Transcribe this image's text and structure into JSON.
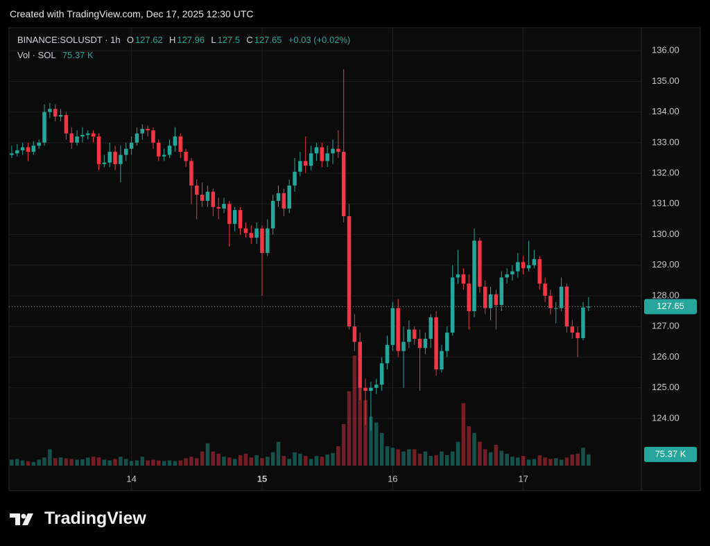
{
  "header": {
    "credit": "Created with TradingView.com, Dec 17, 2025 12:30 UTC"
  },
  "footer": {
    "logo": "TradingView"
  },
  "chart_data": {
    "type": "candlestick",
    "symbol": "BINANCE:SOLUSDT · 1h",
    "open_label": "O",
    "high_label": "H",
    "low_label": "L",
    "close_label": "C",
    "change": "+0.03 (+0.02%)",
    "volume_title": "Vol · SOL",
    "up_color": "#26a69a",
    "down_color": "#f23645",
    "grid": true,
    "xlim": [
      -0.5,
      115.7
    ],
    "xticks": [
      {
        "value": 22,
        "label": "14"
      },
      {
        "value": 46,
        "label": "15"
      },
      {
        "value": 70,
        "label": "16"
      },
      {
        "value": 94,
        "label": "17"
      }
    ],
    "ylim": [
      122.46,
      136.75
    ],
    "yticks": [
      {
        "value": 124,
        "label": "124.00"
      },
      {
        "value": 125,
        "label": "125.00"
      },
      {
        "value": 126,
        "label": "126.00"
      },
      {
        "value": 127,
        "label": "127.00"
      },
      {
        "value": 128,
        "label": "128.00"
      },
      {
        "value": 129,
        "label": "129.00"
      },
      {
        "value": 130,
        "label": "130.00"
      },
      {
        "value": 131,
        "label": "131.00"
      },
      {
        "value": 132,
        "label": "132.00"
      },
      {
        "value": 133,
        "label": "133.00"
      },
      {
        "value": 134,
        "label": "134.00"
      },
      {
        "value": 135,
        "label": "135.00"
      },
      {
        "value": 136,
        "label": "136.00"
      }
    ],
    "open": [
      132.6,
      132.65,
      132.75,
      132.85,
      132.7,
      132.9,
      133.0,
      134.0,
      134.1,
      133.85,
      133.9,
      133.3,
      133.0,
      133.2,
      133.25,
      133.3,
      133.2,
      132.3,
      132.35,
      132.7,
      132.3,
      132.6,
      132.8,
      133.0,
      133.3,
      133.45,
      133.4,
      133.0,
      132.55,
      132.6,
      132.9,
      133.2,
      132.7,
      132.4,
      131.6,
      131.3,
      131.1,
      131.4,
      130.9,
      130.85,
      131.0,
      130.35,
      130.8,
      130.2,
      130.05,
      129.9,
      130.2,
      129.4,
      130.2,
      131.1,
      131.35,
      130.85,
      131.6,
      132.05,
      132.4,
      132.25,
      132.65,
      132.85,
      132.4,
      132.65,
      132.8,
      132.7,
      130.6,
      127.0,
      126.5,
      125.0,
      124.9,
      125.0,
      125.1,
      125.8,
      126.4,
      127.6,
      126.2,
      126.5,
      126.9,
      126.6,
      126.3,
      126.6,
      127.3,
      125.6,
      126.2,
      126.8,
      128.6,
      128.7,
      128.4,
      127.5,
      129.8,
      128.3,
      127.6,
      128.05,
      127.7,
      128.6,
      128.7,
      128.8,
      129.1,
      128.9,
      129.0,
      129.2,
      128.4,
      128.0,
      127.6,
      127.6,
      128.3,
      127.0,
      126.8,
      126.62,
      127.62
    ],
    "high": [
      132.9,
      132.95,
      133.0,
      133.0,
      133.05,
      133.1,
      134.25,
      134.3,
      134.25,
      134.1,
      134.0,
      133.5,
      133.4,
      133.5,
      133.4,
      133.4,
      133.3,
      132.6,
      133.0,
      132.9,
      132.9,
      133.0,
      133.2,
      133.5,
      133.6,
      133.55,
      133.5,
      133.1,
      132.8,
      133.1,
      133.5,
      133.3,
      132.8,
      132.5,
      131.8,
      131.7,
      131.6,
      131.5,
      131.2,
      131.2,
      131.1,
      130.9,
      130.9,
      130.4,
      130.3,
      130.4,
      130.3,
      130.5,
      131.3,
      131.6,
      131.5,
      131.8,
      132.5,
      132.7,
      133.2,
      132.9,
      133.0,
      133.0,
      132.9,
      133.1,
      133.4,
      135.4,
      131.0,
      127.4,
      126.8,
      125.3,
      125.2,
      125.3,
      126.0,
      126.7,
      127.8,
      127.9,
      127.0,
      127.2,
      127.0,
      126.9,
      126.8,
      127.4,
      127.5,
      126.4,
      127.0,
      129.0,
      129.5,
      128.9,
      128.7,
      130.2,
      129.9,
      128.5,
      128.3,
      128.2,
      128.8,
      128.9,
      129.0,
      129.4,
      129.3,
      129.8,
      129.5,
      129.3,
      128.6,
      128.2,
      127.8,
      128.6,
      128.4,
      127.2,
      127.0,
      127.8,
      127.96
    ],
    "low": [
      132.5,
      132.55,
      132.6,
      132.4,
      132.6,
      132.8,
      132.9,
      133.8,
      133.7,
      133.7,
      133.1,
      132.8,
      132.9,
      133.0,
      133.1,
      133.0,
      132.1,
      132.2,
      132.2,
      132.1,
      131.7,
      132.4,
      132.6,
      132.9,
      133.1,
      133.2,
      132.8,
      132.4,
      132.4,
      132.5,
      132.7,
      132.5,
      132.2,
      131.0,
      130.5,
      130.9,
      130.9,
      130.6,
      130.5,
      130.7,
      129.6,
      130.1,
      130.0,
      129.9,
      129.7,
      129.7,
      128.0,
      129.3,
      130.0,
      130.9,
      130.6,
      130.7,
      131.4,
      131.9,
      132.0,
      132.1,
      132.4,
      132.2,
      132.2,
      132.3,
      132.5,
      130.4,
      126.9,
      126.2,
      124.6,
      123.8,
      123.6,
      124.8,
      124.9,
      125.6,
      126.2,
      126.0,
      125.0,
      126.3,
      126.4,
      124.9,
      126.1,
      126.3,
      125.4,
      125.5,
      126.0,
      126.7,
      128.4,
      128.2,
      126.9,
      127.3,
      128.1,
      127.4,
      127.2,
      126.9,
      127.5,
      128.4,
      128.5,
      128.6,
      128.7,
      128.8,
      128.9,
      128.2,
      127.8,
      127.4,
      127.1,
      127.5,
      126.8,
      126.6,
      126.0,
      126.55,
      127.5
    ],
    "close": [
      132.65,
      132.75,
      132.85,
      132.7,
      132.9,
      133.0,
      134.0,
      134.1,
      133.85,
      133.9,
      133.3,
      133.0,
      133.2,
      133.25,
      133.3,
      133.2,
      132.3,
      132.35,
      132.7,
      132.3,
      132.6,
      132.8,
      133.0,
      133.3,
      133.45,
      133.4,
      133.0,
      132.55,
      132.6,
      132.9,
      133.2,
      132.7,
      132.4,
      131.6,
      131.3,
      131.1,
      131.4,
      130.9,
      130.85,
      131.0,
      130.35,
      130.8,
      130.2,
      130.05,
      129.9,
      130.2,
      129.4,
      130.2,
      131.1,
      131.35,
      130.85,
      131.6,
      132.05,
      132.4,
      132.25,
      132.65,
      132.85,
      132.4,
      132.65,
      132.8,
      132.7,
      130.6,
      127.0,
      126.5,
      125.0,
      124.9,
      125.0,
      125.1,
      125.8,
      126.4,
      127.6,
      126.2,
      126.5,
      126.9,
      126.6,
      126.3,
      126.6,
      127.3,
      125.6,
      126.2,
      126.8,
      128.6,
      128.7,
      128.4,
      127.5,
      129.8,
      128.3,
      127.6,
      128.05,
      127.7,
      128.6,
      128.7,
      128.8,
      129.1,
      128.9,
      129.0,
      129.2,
      128.4,
      128.0,
      127.6,
      127.6,
      128.3,
      127.0,
      126.8,
      126.62,
      127.62,
      127.65
    ],
    "volume_ylim": [
      0,
      750
    ],
    "volume": [
      40,
      45,
      35,
      30,
      25,
      40,
      55,
      110,
      50,
      55,
      48,
      45,
      40,
      42,
      55,
      60,
      55,
      40,
      35,
      45,
      60,
      45,
      30,
      35,
      60,
      35,
      40,
      35,
      30,
      35,
      30,
      35,
      50,
      60,
      50,
      95,
      150,
      95,
      80,
      60,
      55,
      45,
      70,
      80,
      55,
      70,
      50,
      60,
      90,
      160,
      65,
      45,
      90,
      80,
      65,
      45,
      65,
      60,
      75,
      85,
      130,
      280,
      500,
      740,
      610,
      440,
      330,
      290,
      220,
      130,
      120,
      110,
      95,
      110,
      110,
      80,
      95,
      65,
      70,
      95,
      70,
      95,
      160,
      420,
      265,
      220,
      160,
      110,
      90,
      140,
      100,
      80,
      60,
      55,
      65,
      40,
      45,
      70,
      55,
      45,
      50,
      40,
      55,
      75,
      80,
      120,
      75.37
    ],
    "volume_value_label": "75.37 K"
  }
}
